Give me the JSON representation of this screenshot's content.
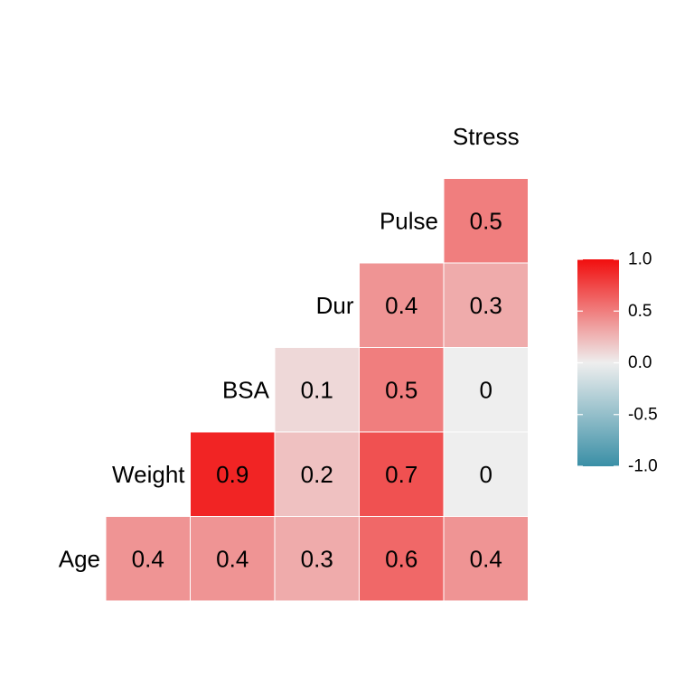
{
  "chart_data": {
    "type": "heatmap",
    "variables": [
      "Age",
      "Weight",
      "BSA",
      "Dur",
      "Pulse",
      "Stress"
    ],
    "cells": [
      {
        "row": "Age",
        "col": "Weight",
        "value": 0.4
      },
      {
        "row": "Age",
        "col": "BSA",
        "value": 0.4
      },
      {
        "row": "Age",
        "col": "Dur",
        "value": 0.3
      },
      {
        "row": "Age",
        "col": "Pulse",
        "value": 0.6
      },
      {
        "row": "Age",
        "col": "Stress",
        "value": 0.4
      },
      {
        "row": "Weight",
        "col": "BSA",
        "value": 0.9
      },
      {
        "row": "Weight",
        "col": "Dur",
        "value": 0.2
      },
      {
        "row": "Weight",
        "col": "Pulse",
        "value": 0.7
      },
      {
        "row": "Weight",
        "col": "Stress",
        "value": 0
      },
      {
        "row": "BSA",
        "col": "Dur",
        "value": 0.1
      },
      {
        "row": "BSA",
        "col": "Pulse",
        "value": 0.5
      },
      {
        "row": "BSA",
        "col": "Stress",
        "value": 0
      },
      {
        "row": "Dur",
        "col": "Pulse",
        "value": 0.4
      },
      {
        "row": "Dur",
        "col": "Stress",
        "value": 0.3
      },
      {
        "row": "Pulse",
        "col": "Stress",
        "value": 0.5
      }
    ],
    "colors": {
      "low": "#3a8fa6",
      "mid": "#eeeeee",
      "high": "#f10e0e"
    },
    "limits": [
      -1,
      1
    ],
    "legend": {
      "position": "right",
      "ticks": [
        1.0,
        0.5,
        0.0,
        -0.5,
        -1.0
      ],
      "tick_labels": [
        "1.0",
        "0.5",
        "0.0",
        "-0.5",
        "-1.0"
      ]
    }
  }
}
